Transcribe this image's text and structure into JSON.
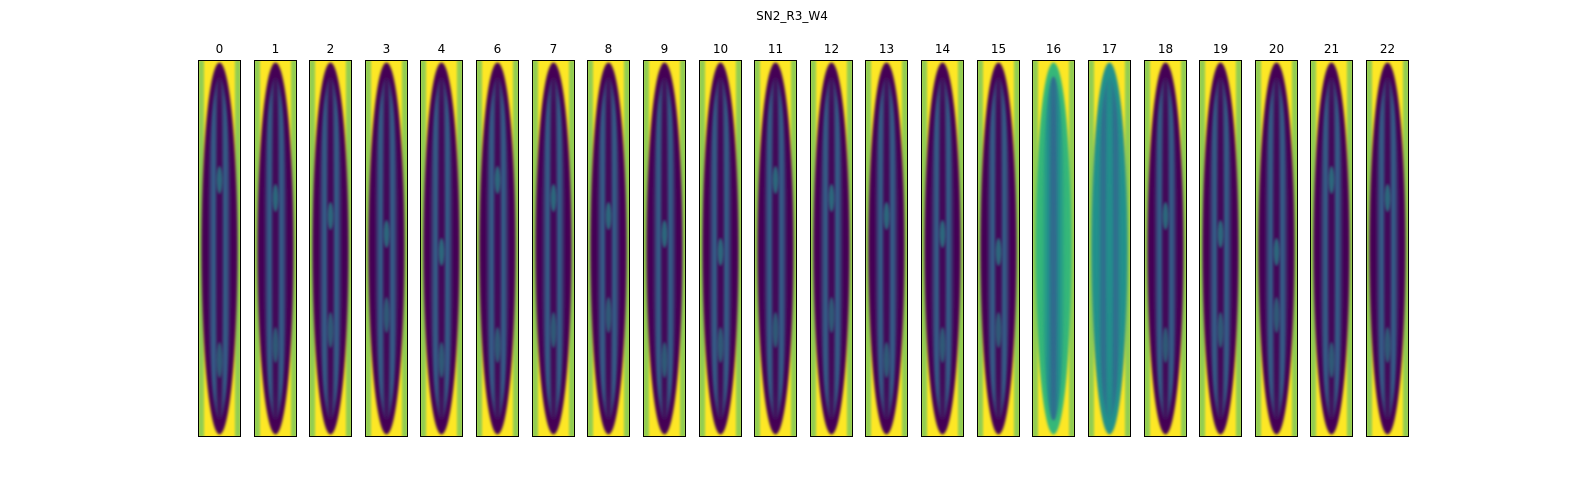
{
  "figure": {
    "title": "SN2_R3_W4",
    "colormap": [
      "#440154",
      "#31688e",
      "#21918c",
      "#35b779",
      "#fde725"
    ],
    "panels": [
      {
        "label": "0",
        "variant": "normal"
      },
      {
        "label": "1",
        "variant": "normal"
      },
      {
        "label": "2",
        "variant": "normal"
      },
      {
        "label": "3",
        "variant": "normal"
      },
      {
        "label": "4",
        "variant": "normal"
      },
      {
        "label": "6",
        "variant": "normal"
      },
      {
        "label": "7",
        "variant": "normal"
      },
      {
        "label": "8",
        "variant": "normal"
      },
      {
        "label": "9",
        "variant": "normal"
      },
      {
        "label": "10",
        "variant": "normal"
      },
      {
        "label": "11",
        "variant": "normal"
      },
      {
        "label": "12",
        "variant": "normal"
      },
      {
        "label": "13",
        "variant": "normal"
      },
      {
        "label": "14",
        "variant": "normal"
      },
      {
        "label": "15",
        "variant": "normal"
      },
      {
        "label": "16",
        "variant": "bright"
      },
      {
        "label": "17",
        "variant": "teal"
      },
      {
        "label": "18",
        "variant": "normal"
      },
      {
        "label": "19",
        "variant": "normal"
      },
      {
        "label": "20",
        "variant": "normal"
      },
      {
        "label": "21",
        "variant": "normal"
      },
      {
        "label": "22",
        "variant": "normal"
      }
    ]
  }
}
